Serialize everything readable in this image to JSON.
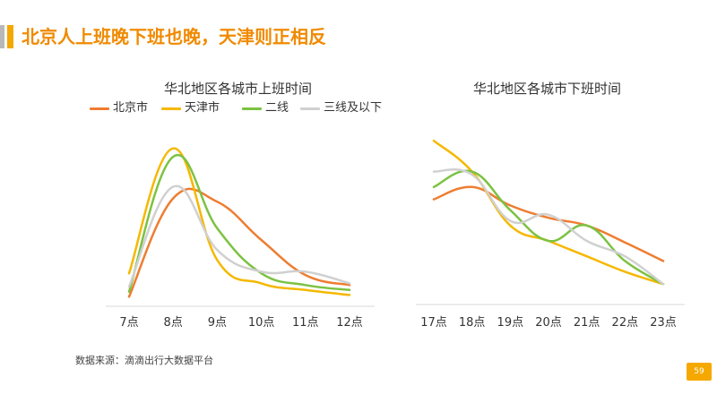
{
  "slide": {
    "title": "北京人上班晚下班也晚，天津则正相反",
    "source": "数据来源：滴滴出行大数据平台",
    "page_number": "59"
  },
  "legend": [
    {
      "name": "北京市",
      "color": "#ee7d31"
    },
    {
      "name": "天津市",
      "color": "#f5b800"
    },
    {
      "name": "二线",
      "color": "#7cc242"
    },
    {
      "name": "三线及以下",
      "color": "#d0d0d0"
    }
  ],
  "chart_data": [
    {
      "type": "line",
      "title": "华北地区各城市上班时间",
      "xlabel": "",
      "ylabel": "",
      "x": [
        "7点",
        "8点",
        "9点",
        "10点",
        "11点",
        "12点"
      ],
      "ylim": [
        0,
        100
      ],
      "grid": false,
      "series": [
        {
          "name": "北京市",
          "color": "#ee7d31",
          "values": [
            2,
            61,
            59,
            36,
            15,
            9
          ]
        },
        {
          "name": "天津市",
          "color": "#f5b800",
          "values": [
            16,
            91,
            24,
            10,
            6,
            3
          ]
        },
        {
          "name": "二线",
          "color": "#7cc242",
          "values": [
            5,
            86,
            43,
            16,
            9,
            6
          ]
        },
        {
          "name": "三线及以下",
          "color": "#d0d0d0",
          "values": [
            8,
            68,
            30,
            17,
            17,
            10
          ]
        }
      ]
    },
    {
      "type": "line",
      "title": "华北地区各城市下班时间",
      "xlabel": "",
      "ylabel": "",
      "x": [
        "17点",
        "18点",
        "19点",
        "20点",
        "21点",
        "22点",
        "23点"
      ],
      "ylim": [
        0,
        100
      ],
      "grid": false,
      "series": [
        {
          "name": "北京市",
          "color": "#ee7d31",
          "values": [
            52,
            60,
            48,
            40,
            35,
            24,
            12
          ]
        },
        {
          "name": "天津市",
          "color": "#f5b800",
          "values": [
            90,
            70,
            35,
            25,
            15,
            5,
            -3
          ]
        },
        {
          "name": "二线",
          "color": "#7cc242",
          "values": [
            60,
            70,
            45,
            25,
            35,
            12,
            -3
          ]
        },
        {
          "name": "三线及以下",
          "color": "#d0d0d0",
          "values": [
            70,
            68,
            38,
            42,
            25,
            15,
            -3
          ]
        }
      ]
    }
  ]
}
